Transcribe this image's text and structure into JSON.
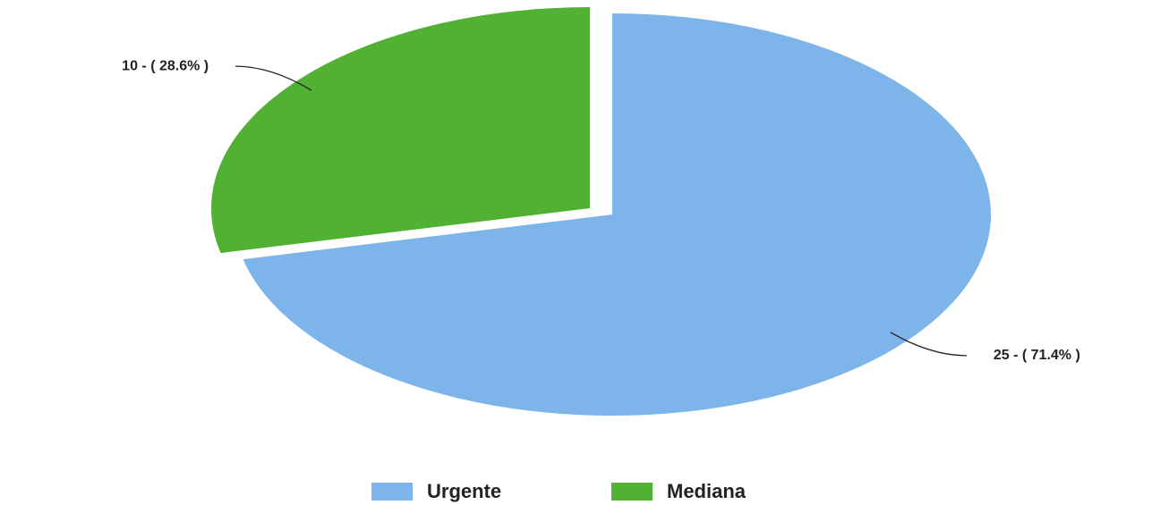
{
  "chart_data": {
    "type": "pie",
    "categories": [
      "Urgente",
      "Mediana"
    ],
    "values": [
      25,
      10
    ],
    "value_labels": [
      "25 - ( 71.4% )",
      "10 - ( 28.6% )"
    ],
    "colors": [
      "#7db4ea",
      "#50b132"
    ],
    "exploded": [
      false,
      true
    ],
    "legend": "bottom"
  }
}
